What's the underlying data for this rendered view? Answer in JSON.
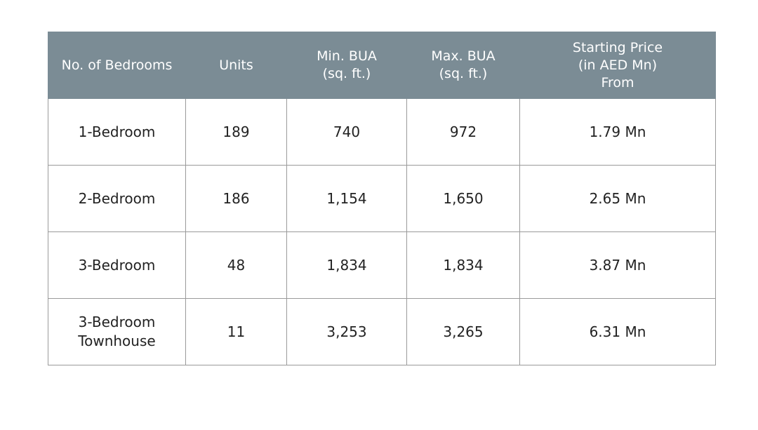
{
  "table": {
    "headers": [
      "No. of Bedrooms",
      "Units",
      "Min. BUA\n(sq. ft.)",
      "Max. BUA\n(sq. ft.)",
      "Starting Price\n(in AED Mn)\nFrom"
    ],
    "rows": [
      [
        "1-Bedroom",
        "189",
        "740",
        "972",
        "1.79 Mn"
      ],
      [
        "2-Bedroom",
        "186",
        "1,154",
        "1,650",
        "2.65 Mn"
      ],
      [
        "3-Bedroom",
        "48",
        "1,834",
        "1,834",
        "3.87 Mn"
      ],
      [
        "3-Bedroom\nTownhouse",
        "11",
        "3,253",
        "3,265",
        "6.31 Mn"
      ]
    ]
  }
}
